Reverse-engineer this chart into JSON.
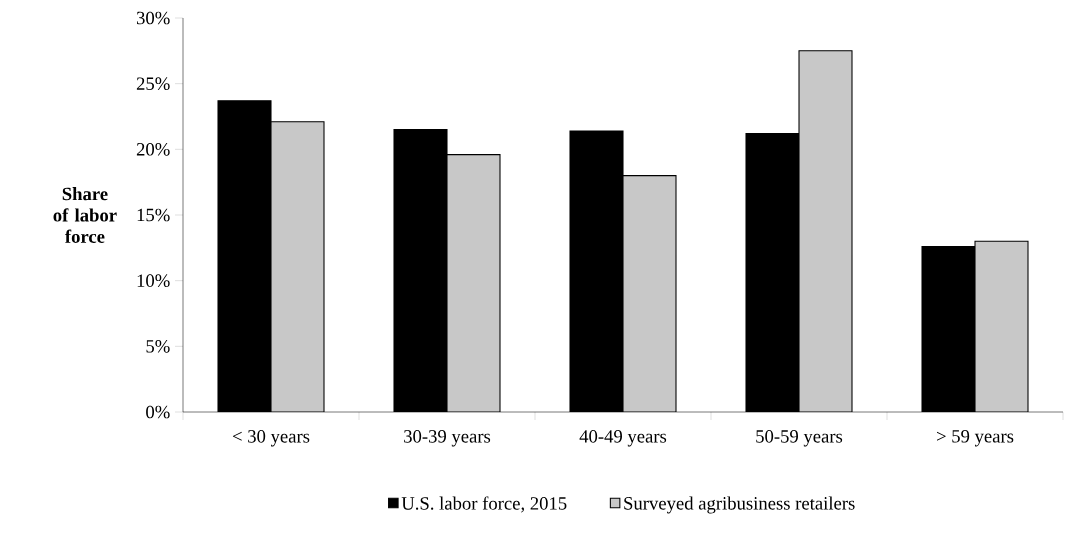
{
  "chart_data": {
    "type": "bar",
    "ylabel": "Share of labor force",
    "categories": [
      "< 30 years",
      "30-39 years",
      "40-49 years",
      "50-59 years",
      "> 59 years"
    ],
    "series": [
      {
        "name": "U.S. labor force, 2015",
        "color": "#000000",
        "values": [
          23.7,
          21.5,
          21.4,
          21.2,
          12.6
        ]
      },
      {
        "name": "Surveyed agribusiness retailers",
        "color": "#c8c8c8",
        "values": [
          22.1,
          19.6,
          18.0,
          27.5,
          13.0
        ]
      }
    ],
    "ylim": [
      0,
      30
    ],
    "yticks": [
      {
        "value": 0,
        "label": "0%"
      },
      {
        "value": 5,
        "label": "5%"
      },
      {
        "value": 10,
        "label": "10%"
      },
      {
        "value": 15,
        "label": "15%"
      },
      {
        "value": 20,
        "label": "20%"
      },
      {
        "value": 25,
        "label": "25%"
      },
      {
        "value": 30,
        "label": "30%"
      }
    ],
    "legend": "bottom",
    "grid": false
  }
}
